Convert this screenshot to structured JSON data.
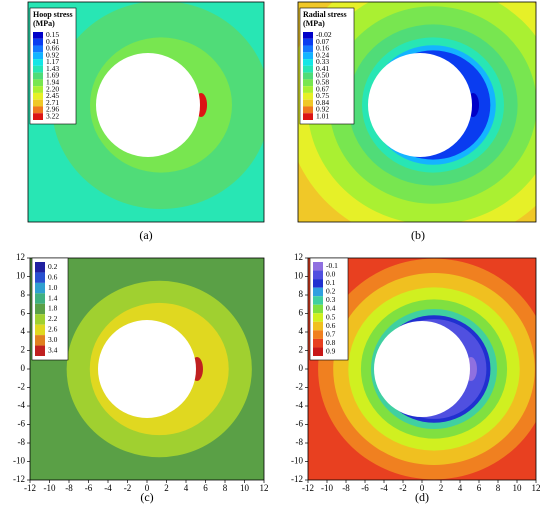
{
  "chart_data": [
    {
      "type": "contour",
      "legend_title": "Hoop stress",
      "legend_unit": "(MPa)",
      "caption": "(a)",
      "levels": [
        0.15,
        0.41,
        0.66,
        0.92,
        1.17,
        1.43,
        1.69,
        1.94,
        {
          "value": 2.2,
          "label": "2.20"
        },
        2.45,
        2.71,
        2.96,
        3.22
      ],
      "colors": [
        "#0000c8",
        "#0a3cf0",
        "#1478ff",
        "#14b4ff",
        "#14e6e6",
        "#28e6b4",
        "#50dc78",
        "#78e650",
        "#aaf032",
        "#e6f028",
        "#f0c828",
        "#f07820",
        "#dc1414"
      ]
    },
    {
      "type": "contour",
      "legend_title": "Radial stress",
      "legend_unit": "(MPa)",
      "caption": "(b)",
      "levels": [
        -0.02,
        0.07,
        0.16,
        0.24,
        0.33,
        0.41,
        {
          "value": 0.5,
          "label": "0.50"
        },
        0.58,
        0.67,
        0.75,
        0.84,
        0.92,
        1.01
      ],
      "colors": [
        "#0000c8",
        "#0a3cf0",
        "#1478ff",
        "#14b4ff",
        "#14e6e6",
        "#28e6b4",
        "#50dc78",
        "#78e650",
        "#aaf032",
        "#e6f028",
        "#f0c828",
        "#f07820",
        "#dc1414"
      ]
    },
    {
      "type": "contour",
      "caption": "(c)",
      "levels": [
        0.2,
        0.6,
        {
          "value": 1,
          "label": "1.0"
        },
        1.4,
        1.8,
        2.2,
        2.6,
        {
          "value": 3,
          "label": "3.0"
        },
        3.4
      ],
      "colors": [
        "#2020a0",
        "#2850d0",
        "#30a0d0",
        "#40b080",
        "#5aa046",
        "#a0d030",
        "#e0d820",
        "#e08020",
        "#c02020"
      ],
      "xlim": [
        -12,
        12
      ],
      "xticks": [
        -12,
        -10,
        -8,
        -6,
        -4,
        -2,
        0,
        2,
        4,
        6,
        8,
        10,
        12
      ],
      "ylim": [
        -12,
        12
      ],
      "yticks": [
        -12,
        -10,
        -8,
        -6,
        -4,
        -2,
        0,
        2,
        4,
        6,
        8,
        10,
        12
      ]
    },
    {
      "type": "contour",
      "caption": "(d)",
      "levels": [
        -0.1,
        {
          "value": 0,
          "label": "0.0"
        },
        0.1,
        0.2,
        0.3,
        0.4,
        0.5,
        0.6,
        0.7,
        0.8,
        0.9
      ],
      "colors": [
        "#9070e0",
        "#5050e0",
        "#2030d0",
        "#30a0e0",
        "#40d0a0",
        "#80e040",
        "#d0f020",
        "#f0c020",
        "#f08020",
        "#e84020",
        "#c81818"
      ],
      "xlim": [
        -12,
        12
      ],
      "xticks": [
        -12,
        -10,
        -8,
        -6,
        -4,
        -2,
        0,
        2,
        4,
        6,
        8,
        10,
        12
      ],
      "ylim": [
        -12,
        12
      ],
      "yticks": [
        -12,
        -10,
        -8,
        -6,
        -4,
        -2,
        0,
        2,
        4,
        6,
        8,
        10,
        12
      ]
    }
  ]
}
